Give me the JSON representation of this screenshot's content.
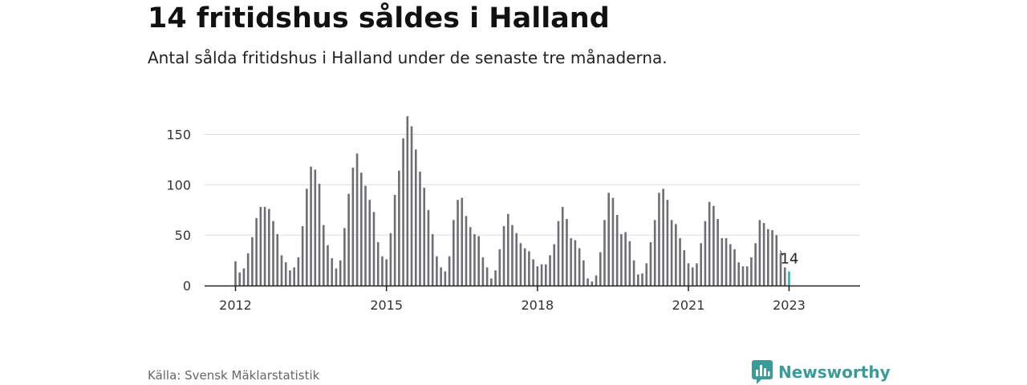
{
  "title": "14 fritidshus såldes i Halland",
  "subtitle": "Antal sålda fritidshus i Halland under de senaste tre månaderna.",
  "source": "Källa: Svensk Mäklarstatistik",
  "brand": {
    "name": "Newsworthy",
    "logo_icon": "newsworthy-chart-bubble-icon"
  },
  "colors": {
    "bar": "#6e6e73",
    "highlight": "#2ab3b1",
    "grid": "#dddddd",
    "axis": "#222222",
    "brand": "#3a9b9a"
  },
  "chart_data": {
    "type": "bar",
    "title": "14 fritidshus såldes i Halland",
    "subtitle": "Antal sålda fritidshus i Halland under de senaste tre månaderna.",
    "xlabel": "",
    "ylabel": "",
    "ylim": [
      0,
      170
    ],
    "yticks": [
      0,
      50,
      100,
      150
    ],
    "xticks": [
      {
        "label": "2012",
        "index": 0
      },
      {
        "label": "2015",
        "index": 36
      },
      {
        "label": "2018",
        "index": 72
      },
      {
        "label": "2021",
        "index": 108
      },
      {
        "label": "2023",
        "index": 132
      }
    ],
    "grid": true,
    "legend": "none",
    "start": "2012-01",
    "frequency": "monthly",
    "highlight_index": 132,
    "highlight_label": "14",
    "values": [
      24,
      13,
      17,
      32,
      48,
      67,
      78,
      78,
      76,
      64,
      51,
      30,
      23,
      15,
      18,
      28,
      59,
      96,
      118,
      115,
      101,
      60,
      40,
      27,
      17,
      25,
      57,
      91,
      117,
      131,
      112,
      99,
      85,
      73,
      43,
      29,
      26,
      52,
      90,
      114,
      146,
      168,
      158,
      135,
      113,
      97,
      75,
      51,
      29,
      18,
      14,
      29,
      65,
      85,
      87,
      69,
      58,
      51,
      49,
      28,
      18,
      7,
      15,
      36,
      59,
      71,
      60,
      52,
      42,
      37,
      34,
      26,
      19,
      21,
      21,
      30,
      41,
      64,
      78,
      66,
      47,
      45,
      37,
      25,
      7,
      4,
      10,
      33,
      65,
      92,
      87,
      70,
      51,
      53,
      44,
      25,
      11,
      12,
      22,
      43,
      65,
      92,
      96,
      85,
      65,
      61,
      47,
      35,
      22,
      18,
      22,
      42,
      64,
      83,
      79,
      66,
      47,
      47,
      41,
      36,
      23,
      19,
      19,
      28,
      42,
      65,
      62,
      56,
      55,
      50,
      32,
      18,
      14
    ]
  }
}
